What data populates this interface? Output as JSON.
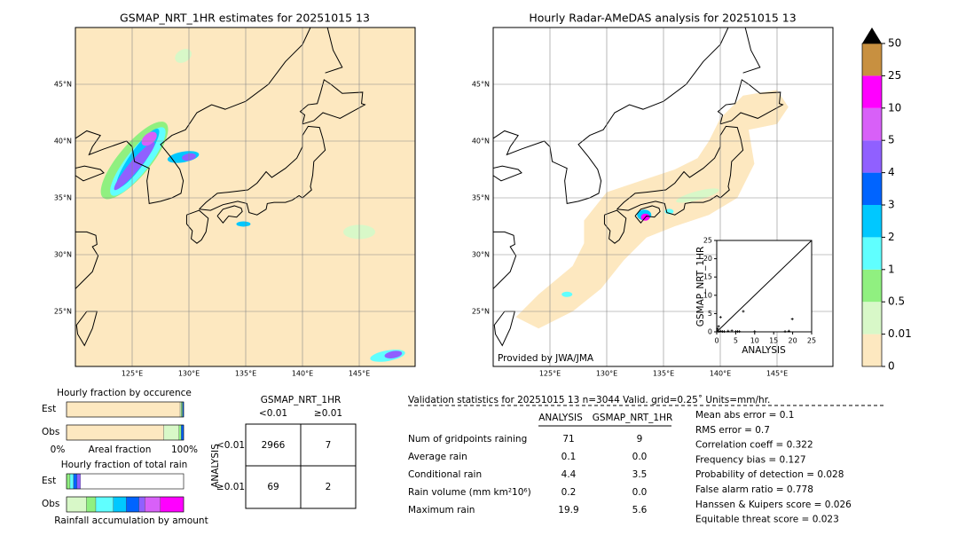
{
  "map_left": {
    "title": "GSMAP_NRT_1HR estimates for 20251015 13",
    "lat_labels": [
      "45°N",
      "40°N",
      "35°N",
      "30°N",
      "25°N"
    ],
    "lon_labels": [
      "125°E",
      "130°E",
      "135°E",
      "140°E",
      "145°E"
    ]
  },
  "map_right": {
    "title": "Hourly Radar-AMeDAS analysis for 20251015 13",
    "lat_labels": [
      "45°N",
      "40°N",
      "35°N",
      "30°N",
      "25°N"
    ],
    "lon_labels": [
      "125°E",
      "130°E",
      "135°E",
      "140°E",
      "145°E"
    ],
    "credit": "Provided by JWA/JMA"
  },
  "colorbar": {
    "labels": [
      "0",
      "0.01",
      "0.5",
      "1",
      "2",
      "3",
      "4",
      "5",
      "10",
      "25",
      "50"
    ],
    "colors": [
      "#fde8c0",
      "#d8f8c8",
      "#90f080",
      "#60ffff",
      "#00c8ff",
      "#0064ff",
      "#9060ff",
      "#d860f8",
      "#ff00ff",
      "#c89040"
    ]
  },
  "scatter": {
    "xlabel": "ANALYSIS",
    "ylabel": "GSMAP_NRT_1HR",
    "xlim": [
      0,
      25
    ],
    "ylim": [
      0,
      25
    ],
    "xticks": [
      0,
      5,
      10,
      15,
      20,
      25
    ],
    "yticks": [
      0,
      5,
      10,
      15,
      20,
      25
    ],
    "x": [
      0.2,
      0.5,
      1,
      1.5,
      2,
      3,
      4,
      5,
      5.5,
      6,
      7,
      1,
      0.5,
      0.2,
      19,
      19.9,
      18,
      10
    ],
    "y": [
      0.3,
      0.1,
      0.2,
      0.1,
      0.1,
      0.2,
      0.3,
      0.1,
      0.1,
      0.1,
      5.6,
      4,
      1.5,
      0.8,
      0.2,
      3.5,
      0.1,
      0.1
    ]
  },
  "occurrence": {
    "title": "Hourly fraction by occurence",
    "est_label": "Est",
    "obs_label": "Obs",
    "axis_left": "0%",
    "axis_mid": "Areal fraction",
    "axis_right": "100%",
    "est": [
      {
        "color": "#fde8c0",
        "value": 0.97
      },
      {
        "color": "#d8f8c8",
        "value": 0.01
      },
      {
        "color": "#90f080",
        "value": 0.01
      },
      {
        "color": "#0064ff",
        "value": 0.01
      }
    ],
    "obs": [
      {
        "color": "#fde8c0",
        "value": 0.83
      },
      {
        "color": "#d8f8c8",
        "value": 0.13
      },
      {
        "color": "#90f080",
        "value": 0.02
      },
      {
        "color": "#0064ff",
        "value": 0.02
      }
    ]
  },
  "total_rain": {
    "title": "Hourly fraction of total rain",
    "est_label": "Est",
    "obs_label": "Obs",
    "axis_mid": "Rainfall accumulation by amount",
    "est": [
      {
        "color": "#90f080",
        "value": 0.03
      },
      {
        "color": "#60ffff",
        "value": 0.03
      },
      {
        "color": "#0064ff",
        "value": 0.03
      },
      {
        "color": "#9060ff",
        "value": 0.03
      }
    ],
    "obs": [
      {
        "color": "#d8f8c8",
        "value": 0.17
      },
      {
        "color": "#90f080",
        "value": 0.08
      },
      {
        "color": "#60ffff",
        "value": 0.15
      },
      {
        "color": "#00c8ff",
        "value": 0.11
      },
      {
        "color": "#0064ff",
        "value": 0.11
      },
      {
        "color": "#9060ff",
        "value": 0.05
      },
      {
        "color": "#d860f8",
        "value": 0.13
      },
      {
        "color": "#ff00ff",
        "value": 0.2
      }
    ]
  },
  "contingency": {
    "title": "GSMAP_NRT_1HR",
    "col_headers": [
      "<0.01",
      "≥0.01"
    ],
    "row_title": "ANALYSIS",
    "row_headers": [
      "<0.01",
      "≥0.01"
    ],
    "cells": [
      [
        "2966",
        "7"
      ],
      [
        "69",
        "2"
      ]
    ]
  },
  "stats": {
    "header": "Validation statistics for 20251015 13  n=3044 Valid. grid=0.25˚ Units=mm/hr.",
    "columns": [
      "ANALYSIS",
      "GSMAP_NRT_1HR"
    ],
    "rows": [
      [
        "Num of gridpoints raining",
        "71",
        "9"
      ],
      [
        "Average rain",
        "0.1",
        "0.0"
      ],
      [
        "Conditional rain",
        "4.4",
        "3.5"
      ],
      [
        "Rain volume (mm km²10⁶)",
        "0.2",
        "0.0"
      ],
      [
        "Maximum rain",
        "19.9",
        "5.6"
      ]
    ],
    "scores": [
      "Mean abs error =    0.1",
      "RMS error =    0.7",
      "Correlation coeff =  0.322",
      "Frequency bias =  0.127",
      "Probability of detection =  0.028",
      "False alarm ratio =  0.778",
      "Hanssen & Kuipers score =  0.026",
      "Equitable threat score =  0.023"
    ]
  }
}
